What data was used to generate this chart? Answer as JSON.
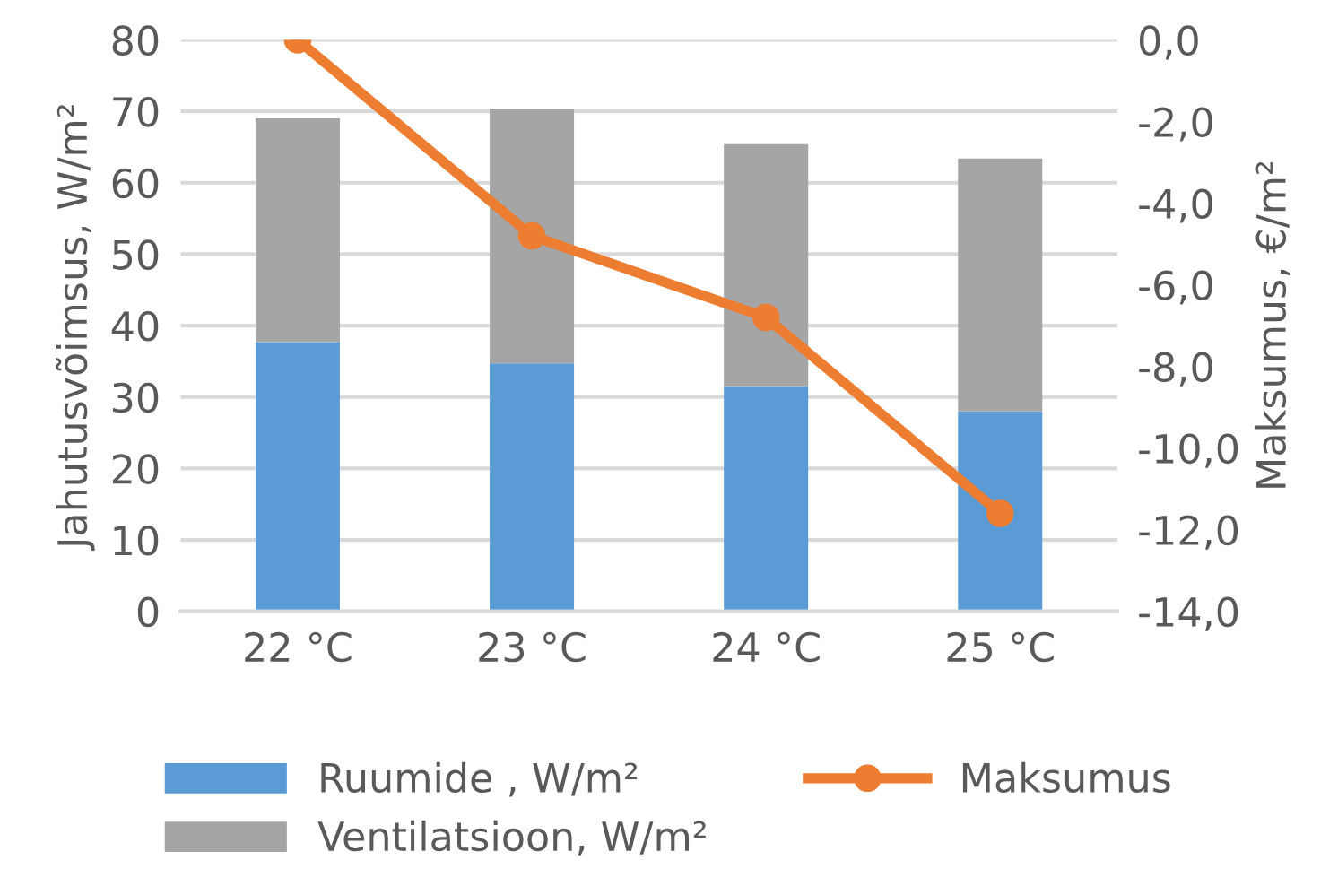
{
  "chart_data": {
    "type": "bar",
    "stacked": true,
    "categories": [
      "22 °C",
      "23 °C",
      "24 °C",
      "25 °C"
    ],
    "series": [
      {
        "name": "Ruumide , W/m²",
        "color": "#5b9bd5",
        "values": [
          37.7,
          34.7,
          31.5,
          28.0
        ]
      },
      {
        "name": "Ventilatsioon, W/m²",
        "color": "#a5a5a5",
        "values": [
          31.3,
          35.7,
          33.9,
          35.4
        ]
      },
      {
        "name": "Maksumus",
        "color": "#ed7d31",
        "type": "line",
        "axis": "y2",
        "marker": "circle",
        "values": [
          0.0,
          -4.8,
          -6.8,
          -11.6
        ]
      }
    ],
    "ylabel": "Jahutusvõimsus, W/m²",
    "y2label": "Maksumus, €/m²",
    "ylim": [
      0,
      80
    ],
    "yticks": [
      0,
      10,
      20,
      30,
      40,
      50,
      60,
      70,
      80
    ],
    "y2lim": [
      -14,
      0
    ],
    "y2ticks": [
      {
        "value": -14,
        "label": "-14,0"
      },
      {
        "value": -12,
        "label": "-12,0"
      },
      {
        "value": -10,
        "label": "-10,0"
      },
      {
        "value": -8,
        "label": "-8,0"
      },
      {
        "value": -6,
        "label": "-6,0"
      },
      {
        "value": -4,
        "label": "-4,0"
      },
      {
        "value": -2,
        "label": "-2,0"
      },
      {
        "value": 0,
        "label": "0,0"
      }
    ],
    "grid": "y",
    "legend": "bottom"
  }
}
